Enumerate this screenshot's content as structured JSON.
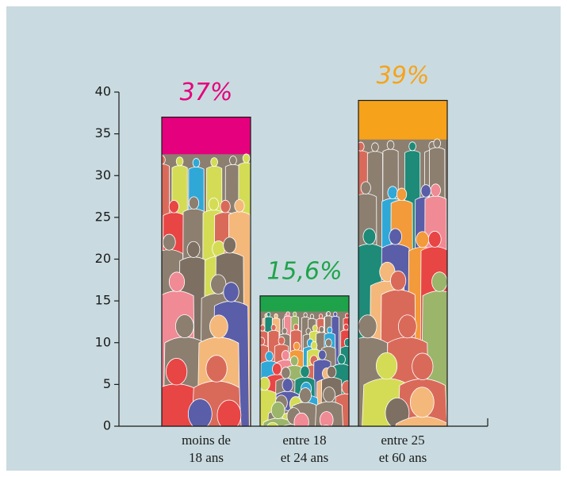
{
  "chart_data": {
    "type": "bar",
    "categories": [
      [
        "moins de",
        "18 ans"
      ],
      [
        "entre 18",
        "et 24 ans"
      ],
      [
        "entre 25",
        "et 60 ans"
      ]
    ],
    "values": [
      37,
      15.6,
      39
    ],
    "value_labels": [
      "37%",
      "15,6%",
      "39%"
    ],
    "colors": [
      "#e5007d",
      "#1fa34a",
      "#f7a21b"
    ],
    "ylim": [
      0,
      40
    ],
    "yticks": [
      0,
      5,
      10,
      15,
      20,
      25,
      30,
      35,
      40
    ]
  }
}
